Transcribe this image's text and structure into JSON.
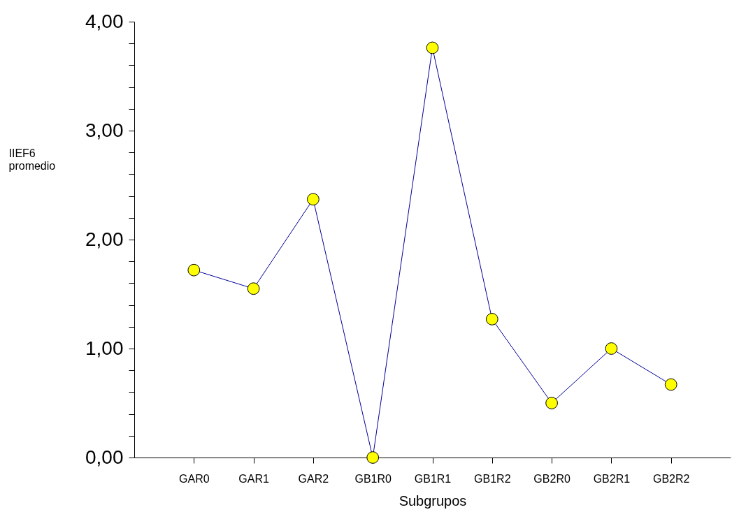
{
  "chart_data": {
    "type": "line",
    "xlabel": "Subgrupos",
    "ylabel": "IIEF6\npromedio",
    "categories": [
      "GAR0",
      "GAR1",
      "GAR2",
      "GB1R0",
      "GB1R1",
      "GB1R2",
      "GB2R0",
      "GB2R1",
      "GB2R2"
    ],
    "series": [
      {
        "color": "#000099",
        "values": [
          1.72,
          1.55,
          2.37,
          0,
          3.76,
          1.27,
          0.5,
          1.0,
          0.67
        ]
      }
    ],
    "marker": "circle",
    "line_style": "solid",
    "grid": false,
    "ylim": [
      0,
      4
    ],
    "yticks": [
      {
        "value": 0,
        "label": "0,00"
      },
      {
        "value": 0.2,
        "label": null
      },
      {
        "value": 0.4,
        "label": null
      },
      {
        "value": 0.6,
        "label": null
      },
      {
        "value": 0.8,
        "label": null
      },
      {
        "value": 1,
        "label": "1,00"
      },
      {
        "value": 1.2,
        "label": null
      },
      {
        "value": 1.4,
        "label": null
      },
      {
        "value": 1.6,
        "label": null
      },
      {
        "value": 1.8,
        "label": null
      },
      {
        "value": 2,
        "label": "2,00"
      },
      {
        "value": 2.2,
        "label": null
      },
      {
        "value": 2.4,
        "label": null
      },
      {
        "value": 2.6,
        "label": null
      },
      {
        "value": 2.8,
        "label": null
      },
      {
        "value": 3,
        "label": "3,00"
      },
      {
        "value": 3.2,
        "label": null
      },
      {
        "value": 3.4,
        "label": null
      },
      {
        "value": 3.6,
        "label": null
      },
      {
        "value": 3.8,
        "label": null
      },
      {
        "value": 4,
        "label": "4,00"
      }
    ]
  }
}
